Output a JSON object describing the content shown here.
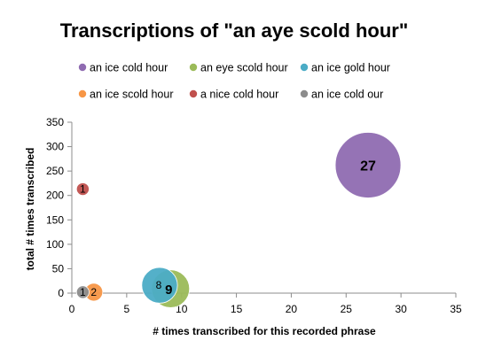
{
  "chart_data": {
    "type": "scatter",
    "title": "Transcriptions of \"an aye scold hour\"",
    "xlabel": "# times transcribed for this recorded phrase",
    "ylabel": "total # times transcribed",
    "xlim": [
      0,
      35
    ],
    "ylim": [
      0,
      350
    ],
    "x_ticks": [
      0,
      5,
      10,
      15,
      20,
      25,
      30,
      35
    ],
    "y_ticks": [
      0,
      50,
      100,
      150,
      200,
      250,
      300,
      350
    ],
    "grid": false,
    "legend_position": "top",
    "series": [
      {
        "name": "an ice cold hour",
        "color": "#8f6bb1",
        "points": [
          {
            "x": 27,
            "y": 262,
            "size": 27,
            "label": "27"
          }
        ]
      },
      {
        "name": "an eye scold hour",
        "color": "#9bbb59",
        "points": [
          {
            "x": 9,
            "y": 9,
            "size": 9,
            "label": "9"
          }
        ]
      },
      {
        "name": "an ice gold hour",
        "color": "#4bacc6",
        "points": [
          {
            "x": 8,
            "y": 16,
            "size": 8,
            "label": "8"
          }
        ]
      },
      {
        "name": "an ice scold hour",
        "color": "#f79646",
        "points": [
          {
            "x": 2,
            "y": 2,
            "size": 2,
            "label": "2"
          }
        ]
      },
      {
        "name": "a nice cold hour",
        "color": "#c0504d",
        "points": [
          {
            "x": 1,
            "y": 213,
            "size": 1,
            "label": "1"
          }
        ]
      },
      {
        "name": "an ice cold our",
        "color": "#8c8c8c",
        "points": [
          {
            "x": 1,
            "y": 2,
            "size": 1,
            "label": "1"
          }
        ]
      }
    ]
  }
}
